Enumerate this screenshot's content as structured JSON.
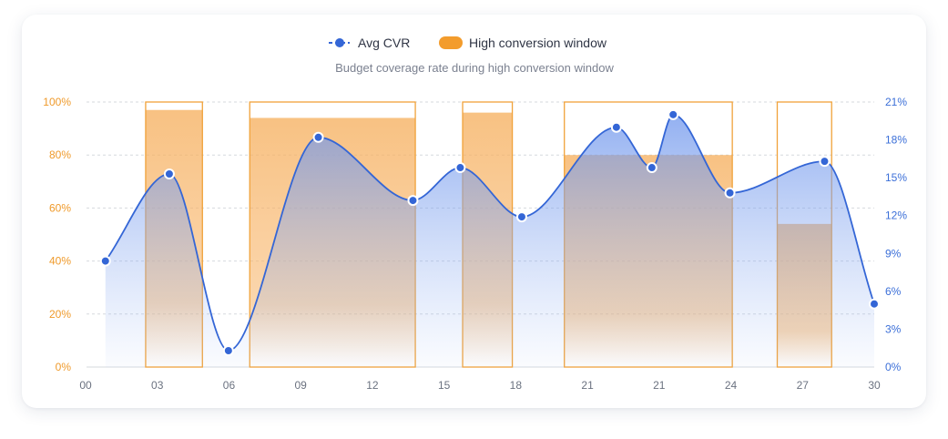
{
  "colors": {
    "line": "#3466d6",
    "line_fill": "#7fa3ef",
    "window_stroke": "#f0a23a",
    "window_fill": "#f7b56a",
    "left_axis_text": "#ef9a2b",
    "right_axis_text": "#3b6fd8",
    "x_axis_text": "#6b7280",
    "subtitle": "#7b8190",
    "grid": "#d6d9de"
  },
  "legend": {
    "line_label": "Avg CVR",
    "window_label": "High conversion window"
  },
  "chart_data": {
    "type": "line",
    "subtitle": "Budget coverage rate during high conversion window",
    "x_tick_labels": [
      "00",
      "03",
      "06",
      "09",
      "12",
      "15",
      "18",
      "21",
      "21",
      "24",
      "27",
      "30"
    ],
    "left_axis": {
      "ylim": [
        0,
        100
      ],
      "ticks": [
        "0%",
        "20%",
        "40%",
        "60%",
        "80%",
        "100%"
      ]
    },
    "right_axis": {
      "ylim": [
        0,
        21
      ],
      "ticks": [
        "0%",
        "3%",
        "6%",
        "9%",
        "12%",
        "15%",
        "18%",
        "21%"
      ]
    },
    "grid": true,
    "legend_position": "top-center",
    "series": [
      {
        "name": "Avg CVR",
        "axis": "right",
        "points": [
          {
            "x": 0.8,
            "y": 8.4
          },
          {
            "x": 3.5,
            "y": 15.3
          },
          {
            "x": 6.0,
            "y": 1.3
          },
          {
            "x": 9.8,
            "y": 18.2
          },
          {
            "x": 13.8,
            "y": 13.2
          },
          {
            "x": 15.8,
            "y": 15.8
          },
          {
            "x": 18.4,
            "y": 11.9
          },
          {
            "x": 22.4,
            "y": 19.0
          },
          {
            "x": 23.9,
            "y": 15.8
          },
          {
            "x": 24.8,
            "y": 20.0
          },
          {
            "x": 27.2,
            "y": 13.8
          },
          {
            "x": 31.2,
            "y": 16.3
          },
          {
            "x": 33.3,
            "y": 5.0
          }
        ]
      },
      {
        "name": "High conversion window",
        "axis": "left",
        "type": "bar-window",
        "windows": [
          {
            "x_start": 2.5,
            "x_end": 4.9,
            "value": 97
          },
          {
            "x_start": 6.9,
            "x_end": 13.9,
            "value": 94
          },
          {
            "x_start": 15.9,
            "x_end": 18.0,
            "value": 96
          },
          {
            "x_start": 20.2,
            "x_end": 27.3,
            "value": 80
          },
          {
            "x_start": 29.2,
            "x_end": 31.5,
            "value": 54
          }
        ]
      }
    ]
  }
}
